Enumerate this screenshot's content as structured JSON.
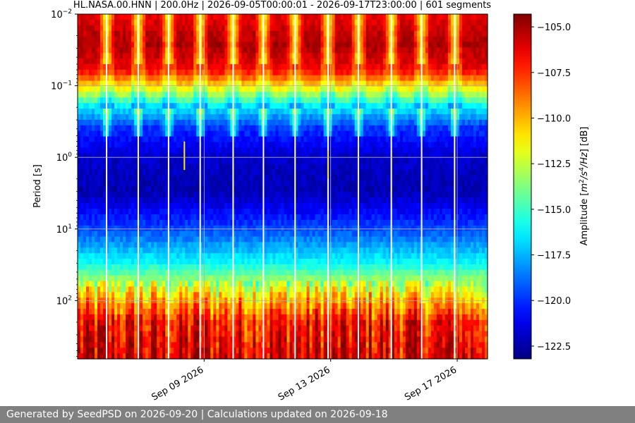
{
  "chart_data": {
    "type": "heatmap",
    "title": "HL.NASA.00.HNN | 200.0Hz | 2026-09-05T00:00:01 - 2026-09-17T23:00:00 | 601 segments",
    "xlabel": "",
    "ylabel": "Period [s]",
    "x_range": [
      "2026-09-05T00:00:01",
      "2026-09-17T23:00:00"
    ],
    "x_ticks": [
      {
        "date": "2026-09-09",
        "label": "Sep 09 2026"
      },
      {
        "date": "2026-09-13",
        "label": "Sep 13 2026"
      },
      {
        "date": "2026-09-17",
        "label": "Sep 17 2026"
      }
    ],
    "y_scale": "log",
    "y_range": [
      0.01,
      650
    ],
    "y_inverted": true,
    "y_ticks": [
      {
        "value": 0.01,
        "base": "10",
        "exp": "−2"
      },
      {
        "value": 0.1,
        "base": "10",
        "exp": "−1"
      },
      {
        "value": 1,
        "base": "10",
        "exp": "0"
      },
      {
        "value": 10,
        "base": "10",
        "exp": "1"
      },
      {
        "value": 100,
        "base": "10",
        "exp": "2"
      }
    ],
    "grid": true,
    "colormap": "jet",
    "colorbar": {
      "label_prefix": "Amplitude [",
      "label_m": "m",
      "label_sq": "2",
      "label_slash": "/",
      "label_s": "s",
      "label_4": "4",
      "label_hz": "/Hz",
      "label_suffix": "] [dB]",
      "range": [
        -123.2,
        -104.3
      ],
      "ticks": [
        {
          "value": -105.0,
          "label": "−105.0"
        },
        {
          "value": -107.5,
          "label": "−107.5"
        },
        {
          "value": -110.0,
          "label": "−110.0"
        },
        {
          "value": -112.5,
          "label": "−112.5"
        },
        {
          "value": -115.0,
          "label": "−115.0"
        },
        {
          "value": -117.5,
          "label": "−117.5"
        },
        {
          "value": -120.0,
          "label": "−120.0"
        },
        {
          "value": -122.5,
          "label": "−122.5"
        }
      ]
    },
    "gaps": [
      "2026-09-05T22:00",
      "2026-09-06T22:00",
      "2026-09-07T21:00",
      "2026-09-08T21:00",
      "2026-09-09T22:00",
      "2026-09-10T21:00",
      "2026-09-11T21:00",
      "2026-09-12T22:00",
      "2026-09-13T21:00",
      "2026-09-14T22:00",
      "2026-09-15T21:00",
      "2026-09-16T22:00"
    ],
    "events": [
      {
        "time": "2026-09-08T09:00",
        "period_range": [
          0.6,
          1.5
        ]
      },
      {
        "time": "2026-09-12T22:00",
        "period_range": [
          0.8,
          2.0
        ]
      }
    ],
    "noise_profile": [
      {
        "period": 0.01,
        "db": -106.3
      },
      {
        "period": 0.027,
        "db": -105.0
      },
      {
        "period": 0.06,
        "db": -106.5
      },
      {
        "period": 0.1,
        "db": -110.5
      },
      {
        "period": 0.2,
        "db": -116.5
      },
      {
        "period": 0.4,
        "db": -120.0
      },
      {
        "period": 1,
        "db": -121.8
      },
      {
        "period": 3,
        "db": -122.3
      },
      {
        "period": 10,
        "db": -119.5
      },
      {
        "period": 30,
        "db": -116.0
      },
      {
        "period": 100,
        "db": -110.0
      },
      {
        "period": 200,
        "db": -107.0
      },
      {
        "period": 650,
        "db": -106.0
      }
    ]
  },
  "footer": {
    "text": "Generated by SeedPSD on 2026-09-20 | Calculations updated on 2026-09-18"
  }
}
